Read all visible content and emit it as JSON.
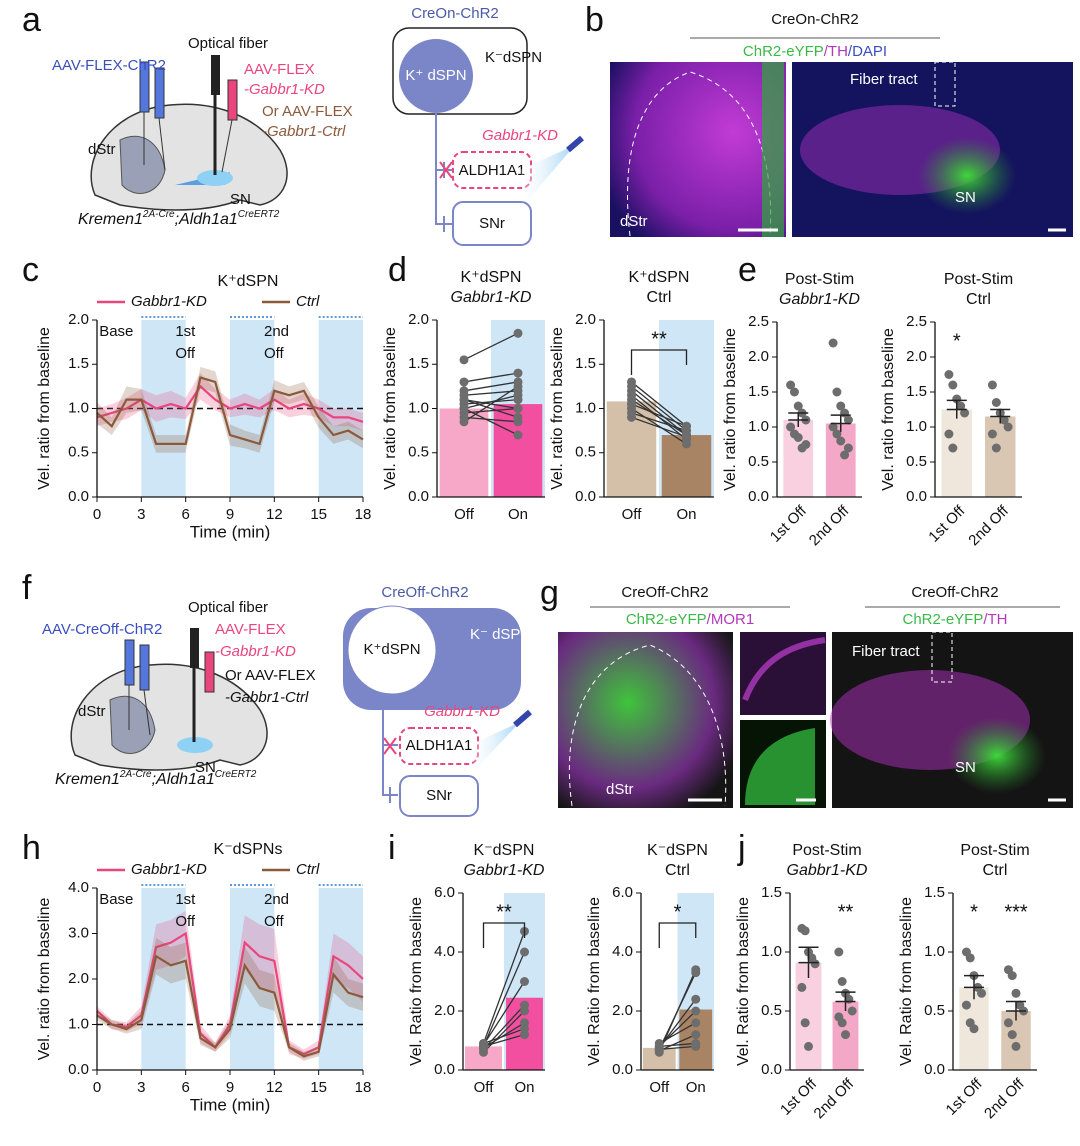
{
  "panel_labels": [
    "a",
    "b",
    "c",
    "d",
    "e",
    "f",
    "g",
    "h",
    "i",
    "j"
  ],
  "diagram_a": {
    "virus1": "AAV-FLEX-ChR2",
    "fiber": "Optical fiber",
    "virus2": [
      "AAV-FLEX",
      "-Gabbr1-KD"
    ],
    "virus3": [
      "Or AAV-FLEX",
      "-Gabbr1-Ctrl"
    ],
    "region1": "dStr",
    "region2": "SN",
    "genotype": [
      "Kremen1",
      "2A-Cre",
      ";Aldh1a1",
      "CreERT2"
    ]
  },
  "circuit_a": {
    "title": "CreOn-ChR2",
    "outer": "K⁻dSPN",
    "inner": "K⁺ dSPN",
    "kd": "Gabbr1-KD",
    "target1": "ALDH1A1",
    "target2": "SNr"
  },
  "image_b": {
    "title": "CreOn-ChR2",
    "stain": [
      "ChR2-eYFP",
      "/TH",
      "/DAPI"
    ],
    "fiber": "Fiber tract",
    "region1": "dStr",
    "region2": "SN"
  },
  "diagram_f": {
    "virus1": "AAV-CreOff-ChR2",
    "fiber": "Optical fiber",
    "virus2": [
      "AAV-FLEX",
      "-Gabbr1-KD"
    ],
    "virus3": [
      "Or AAV-FLEX",
      "-Gabbr1-Ctrl"
    ],
    "region1": "dStr",
    "region2": "SN",
    "genotype": [
      "Kremen1",
      "2A-Cre",
      ";Aldh1a1",
      "CreERT2"
    ]
  },
  "circuit_f": {
    "title": "CreOff-ChR2",
    "outer": "K⁻ dSPN",
    "inner": "K⁺dSPN",
    "kd": "Gabbr1-KD",
    "target1": "ALDH1A1",
    "target2": "SNr"
  },
  "image_g": {
    "title1": "CreOff-ChR2",
    "stain1": [
      "ChR2-eYFP",
      "/MOR1"
    ],
    "region1": "dStr",
    "title2": "CreOff-ChR2",
    "stain2": [
      "ChR2-eYFP",
      "/TH"
    ],
    "fiber": "Fiber tract",
    "region2": "SN"
  },
  "chart_data": [
    {
      "type": "line",
      "title": "K⁺dSPN",
      "ylabel": "Vel. ratio from baseline",
      "xlabel": "Time (min)",
      "x": [
        0,
        1,
        2,
        3,
        4,
        5,
        6,
        7,
        8,
        9,
        10,
        11,
        12,
        13,
        14,
        15,
        16,
        17,
        18
      ],
      "series": [
        {
          "name": "Gabbr1-KD",
          "color": "#e8467c",
          "values": [
            0.9,
            0.95,
            1.0,
            1.1,
            1.0,
            1.05,
            1.0,
            1.25,
            1.1,
            1.0,
            1.05,
            1.0,
            1.1,
            1.0,
            1.05,
            1.0,
            0.9,
            0.9,
            0.85
          ],
          "errors": [
            0.1,
            0.1,
            0.12,
            0.12,
            0.15,
            0.15,
            0.12,
            0.15,
            0.12,
            0.1,
            0.12,
            0.1,
            0.12,
            0.1,
            0.12,
            0.1,
            0.1,
            0.1,
            0.1
          ]
        },
        {
          "name": "Ctrl",
          "color": "#8b5a3c",
          "values": [
            0.95,
            0.8,
            1.1,
            1.1,
            0.6,
            0.6,
            0.6,
            1.35,
            1.3,
            0.7,
            0.65,
            0.6,
            1.2,
            1.15,
            1.2,
            0.9,
            0.7,
            0.75,
            0.65
          ],
          "errors": [
            0.12,
            0.1,
            0.15,
            0.12,
            0.1,
            0.1,
            0.1,
            0.12,
            0.12,
            0.12,
            0.1,
            0.1,
            0.12,
            0.1,
            0.1,
            0.12,
            0.1,
            0.1,
            0.1
          ]
        }
      ],
      "xlim": [
        0,
        18
      ],
      "xticks": [
        0,
        3,
        6,
        9,
        12,
        15,
        18
      ],
      "ylim": [
        0,
        2
      ],
      "yticks": [
        {
          "value": 0,
          "label": "0.0"
        },
        0.5,
        {
          "value": 1,
          "label": "1.0"
        },
        1.5,
        {
          "value": 2,
          "label": "2.0"
        }
      ],
      "shaded": [
        [
          3,
          6
        ],
        [
          9,
          12
        ],
        [
          15,
          18
        ]
      ],
      "shade_color": "#cfe6f7",
      "reference_line": 1,
      "annotations": [
        "Base",
        "1st",
        "Off",
        "2nd",
        "Off"
      ]
    },
    {
      "type": "bar",
      "title": [
        "K⁺dSPN",
        "Gabbr1-KD"
      ],
      "ylabel": "Vel. ratio from baseline",
      "categories": [
        "Off",
        "On"
      ],
      "values": [
        1.0,
        1.05
      ],
      "colors": [
        "#f7a8c8",
        "#f24fa0"
      ],
      "paired": true,
      "highlight_color": "#cfe6f7",
      "point_color": "#6d6d6d",
      "points": [
        [
          1.55,
          1.3,
          1.2,
          1.15,
          1.1,
          1.05,
          1.0,
          0.95,
          0.9,
          0.85,
          1.0,
          1.1
        ],
        [
          1.85,
          1.4,
          1.3,
          1.2,
          0.9,
          1.1,
          0.7,
          1.0,
          0.85,
          1.25,
          1.15,
          1.0
        ]
      ],
      "ylim": [
        0,
        2
      ],
      "yticks": [
        {
          "value": 0,
          "label": "0.0"
        },
        0.5,
        {
          "value": 1,
          "label": "1.0"
        },
        1.5,
        {
          "value": 2,
          "label": "2.0"
        }
      ]
    },
    {
      "type": "bar",
      "title": [
        "K⁺dSPN",
        "Ctrl"
      ],
      "ylabel": "Vel. ratio from baseline",
      "categories": [
        "Off",
        "On"
      ],
      "values": [
        1.08,
        0.7
      ],
      "colors": [
        "#d4bfa8",
        "#a88464"
      ],
      "paired": true,
      "highlight_color": "#cfe6f7",
      "point_color": "#6d6d6d",
      "significance": "**",
      "points": [
        [
          1.3,
          1.25,
          1.2,
          1.15,
          1.1,
          1.05,
          1.0,
          0.95,
          0.9
        ],
        [
          0.8,
          0.75,
          0.7,
          0.65,
          0.7,
          0.8,
          0.6,
          0.75,
          0.68
        ]
      ],
      "ylim": [
        0,
        2
      ],
      "yticks": [
        {
          "value": 0,
          "label": "0.0"
        },
        0.5,
        {
          "value": 1,
          "label": "1.0"
        },
        1.5,
        {
          "value": 2,
          "label": "2.0"
        }
      ]
    },
    {
      "type": "bar",
      "title": [
        "Post-Stim",
        "Gabbr1-KD"
      ],
      "ylabel": "Vel. ratio from baseline",
      "categories": [
        "1st Off",
        "2nd Off"
      ],
      "rotated_labels": true,
      "values": [
        1.1,
        1.05
      ],
      "errors": [
        0.1,
        0.12
      ],
      "colors": [
        "#f9d0e0",
        "#f4a8c8"
      ],
      "point_color": "#6d6d6d",
      "points": [
        [
          1.6,
          1.5,
          1.3,
          1.2,
          1.1,
          1.0,
          0.9,
          0.85,
          0.7,
          0.75
        ],
        [
          2.2,
          1.5,
          1.3,
          1.2,
          1.1,
          1.0,
          0.9,
          0.8,
          0.6,
          0.7
        ]
      ],
      "ylim": [
        0,
        2.5
      ],
      "yticks": [
        {
          "value": 0,
          "label": "0.0"
        },
        0.5,
        {
          "value": 1,
          "label": "1.0"
        },
        1.5,
        {
          "value": 2,
          "label": "2.0"
        },
        2.5
      ]
    },
    {
      "type": "bar",
      "title": [
        "Post-Stim",
        "Ctrl"
      ],
      "ylabel": "Vel. ratio from baseline",
      "categories": [
        "1st Off",
        "2nd Off"
      ],
      "rotated_labels": true,
      "values": [
        1.25,
        1.15
      ],
      "errors": [
        0.13,
        0.1
      ],
      "colors": [
        "#efe6dc",
        "#d9c7b3"
      ],
      "point_color": "#6d6d6d",
      "stars": [
        "*",
        null
      ],
      "points": [
        [
          1.75,
          1.6,
          1.4,
          1.3,
          1.2,
          0.9,
          0.7
        ],
        [
          1.6,
          1.35,
          1.2,
          1.1,
          1.0,
          0.9,
          0.7
        ]
      ],
      "ylim": [
        0,
        2.5
      ],
      "yticks": [
        {
          "value": 0,
          "label": "0.0"
        },
        0.5,
        {
          "value": 1,
          "label": "1.0"
        },
        1.5,
        {
          "value": 2,
          "label": "2.0"
        },
        2.5
      ]
    },
    {
      "type": "line",
      "title": "K⁻dSPNs",
      "ylabel": "Vel. ratio from baseline",
      "xlabel": "Time (min)",
      "x": [
        0,
        1,
        2,
        3,
        4,
        5,
        6,
        7,
        8,
        9,
        10,
        11,
        12,
        13,
        14,
        15,
        16,
        17,
        18
      ],
      "series": [
        {
          "name": "Gabbr1-KD",
          "color": "#e8467c",
          "values": [
            1.3,
            1.0,
            0.95,
            1.2,
            2.7,
            2.8,
            3.0,
            0.8,
            0.5,
            1.0,
            2.8,
            2.5,
            2.4,
            0.5,
            0.35,
            0.5,
            2.5,
            2.3,
            2.0
          ],
          "errors": [
            0.1,
            0.1,
            0.1,
            0.2,
            0.5,
            0.5,
            0.5,
            0.2,
            0.1,
            0.2,
            0.6,
            0.7,
            0.7,
            0.15,
            0.1,
            0.15,
            0.5,
            0.5,
            0.5
          ]
        },
        {
          "name": "Ctrl",
          "color": "#8b5a3c",
          "values": [
            1.2,
            1.0,
            0.9,
            1.1,
            2.5,
            2.3,
            2.4,
            0.7,
            0.5,
            0.9,
            2.3,
            1.8,
            1.7,
            0.5,
            0.3,
            0.4,
            2.1,
            1.7,
            1.6
          ],
          "errors": [
            0.1,
            0.1,
            0.1,
            0.2,
            0.4,
            0.4,
            0.4,
            0.15,
            0.1,
            0.2,
            0.4,
            0.4,
            0.4,
            0.1,
            0.1,
            0.1,
            0.4,
            0.3,
            0.3
          ]
        }
      ],
      "xlim": [
        0,
        18
      ],
      "xticks": [
        0,
        3,
        6,
        9,
        12,
        15,
        18
      ],
      "ylim": [
        0,
        4
      ],
      "yticks": [
        {
          "value": 0,
          "label": "0.0"
        },
        {
          "value": 1,
          "label": "1.0"
        },
        {
          "value": 2,
          "label": "2.0"
        },
        {
          "value": 3,
          "label": "3.0"
        },
        {
          "value": 4,
          "label": "4.0"
        }
      ],
      "shaded": [
        [
          3,
          6
        ],
        [
          9,
          12
        ],
        [
          15,
          18
        ]
      ],
      "shade_color": "#cfe6f7",
      "reference_line": 1,
      "annotations": [
        "Base",
        "1st",
        "Off",
        "2nd",
        "Off"
      ]
    },
    {
      "type": "bar",
      "title": [
        "K⁻dSPN",
        "Gabbr1-KD"
      ],
      "ylabel": "Vel. Ratio from baseline",
      "categories": [
        "Off",
        "On"
      ],
      "values": [
        0.8,
        2.45
      ],
      "colors": [
        "#f7a8c8",
        "#f24fa0"
      ],
      "paired": true,
      "highlight_color": "#cfe6f7",
      "point_color": "#6d6d6d",
      "significance": "**",
      "points": [
        [
          0.9,
          0.8,
          0.85,
          0.7,
          0.6,
          0.75,
          0.9,
          0.8
        ],
        [
          4.7,
          4.0,
          3.0,
          2.2,
          2.0,
          1.6,
          1.4,
          1.2
        ]
      ],
      "ylim": [
        0,
        6
      ],
      "yticks": [
        {
          "value": 0,
          "label": "0.0"
        },
        {
          "value": 2,
          "label": "2.0"
        },
        {
          "value": 4,
          "label": "4.0"
        },
        {
          "value": 6,
          "label": "6.0"
        }
      ]
    },
    {
      "type": "bar",
      "title": [
        "K⁻dSPN",
        "Ctrl"
      ],
      "ylabel": "Vel. Ratio from baseline",
      "categories": [
        "Off",
        "On"
      ],
      "values": [
        0.75,
        2.05
      ],
      "colors": [
        "#d4bfa8",
        "#a88464"
      ],
      "paired": true,
      "highlight_color": "#cfe6f7",
      "point_color": "#6d6d6d",
      "significance": "*",
      "points": [
        [
          0.6,
          0.7,
          0.75,
          0.8,
          0.9,
          0.65,
          0.7,
          0.8
        ],
        [
          3.4,
          3.3,
          2.4,
          2.0,
          1.6,
          1.2,
          0.8,
          0.9
        ]
      ],
      "ylim": [
        0,
        6
      ],
      "yticks": [
        {
          "value": 0,
          "label": "0.0"
        },
        {
          "value": 2,
          "label": "2.0"
        },
        {
          "value": 4,
          "label": "4.0"
        },
        {
          "value": 6,
          "label": "6.0"
        }
      ]
    },
    {
      "type": "bar",
      "title": [
        "Post-Stim",
        "Gabbr1-KD"
      ],
      "ylabel": "Vel. Ratio from baseline",
      "categories": [
        "1st Off",
        "2nd Off"
      ],
      "rotated_labels": true,
      "values": [
        0.91,
        0.58
      ],
      "errors": [
        0.13,
        0.08
      ],
      "colors": [
        "#f9d0e0",
        "#f4a8c8"
      ],
      "point_color": "#6d6d6d",
      "stars": [
        null,
        "**"
      ],
      "points": [
        [
          1.2,
          1.18,
          1.0,
          0.95,
          0.9,
          0.7,
          0.4,
          0.2
        ],
        [
          1.0,
          0.75,
          0.65,
          0.6,
          0.5,
          0.45,
          0.4,
          0.3
        ]
      ],
      "ylim": [
        0,
        1.5
      ],
      "yticks": [
        {
          "value": 0,
          "label": "0.0"
        },
        0.5,
        {
          "value": 1,
          "label": "1.0"
        },
        1.5
      ]
    },
    {
      "type": "bar",
      "title": [
        "Post-Stim",
        "Ctrl"
      ],
      "ylabel": "Vel. Ratio from baseline",
      "categories": [
        "1st Off",
        "2nd Off"
      ],
      "rotated_labels": true,
      "values": [
        0.7,
        0.5
      ],
      "errors": [
        0.1,
        0.08
      ],
      "colors": [
        "#efe6dc",
        "#d9c7b3"
      ],
      "point_color": "#6d6d6d",
      "stars": [
        "*",
        "***"
      ],
      "points": [
        [
          1.0,
          0.95,
          0.8,
          0.7,
          0.65,
          0.55,
          0.4,
          0.35
        ],
        [
          0.85,
          0.8,
          0.65,
          0.55,
          0.5,
          0.4,
          0.3,
          0.2
        ]
      ],
      "ylim": [
        0,
        1.5
      ],
      "yticks": [
        {
          "value": 0,
          "label": "0.0"
        },
        0.5,
        {
          "value": 1,
          "label": "1.0"
        },
        1.5
      ]
    }
  ]
}
